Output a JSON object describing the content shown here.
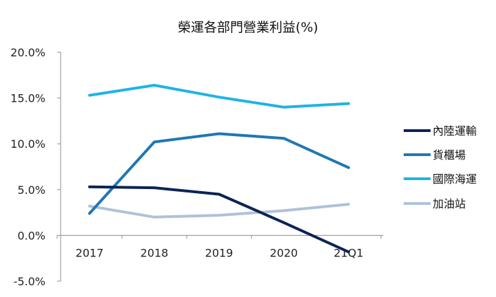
{
  "chart_data": {
    "type": "line",
    "title": "榮運各部門營業利益(%)",
    "categories": [
      "2017",
      "2018",
      "2019",
      "2020",
      "21Q1"
    ],
    "ylim": [
      -5.0,
      20.0
    ],
    "yticks": [
      "20.0%",
      "15.0%",
      "10.0%",
      "5.0%",
      "0.0%",
      "-5.0%"
    ],
    "grid": false,
    "legend_position": "right",
    "series": [
      {
        "name": "內陸運輸",
        "color": "#0b2454",
        "values": [
          5.3,
          5.2,
          4.5,
          1.4,
          -1.8
        ]
      },
      {
        "name": "貨櫃場",
        "color": "#1f77b4",
        "values": [
          2.4,
          10.2,
          11.1,
          10.6,
          7.4
        ]
      },
      {
        "name": "國際海運",
        "color": "#1fb3e5",
        "values": [
          15.3,
          16.4,
          15.1,
          14.0,
          14.4
        ]
      },
      {
        "name": "加油站",
        "color": "#afc1da",
        "values": [
          3.2,
          2.0,
          2.2,
          2.7,
          3.4
        ]
      }
    ]
  }
}
